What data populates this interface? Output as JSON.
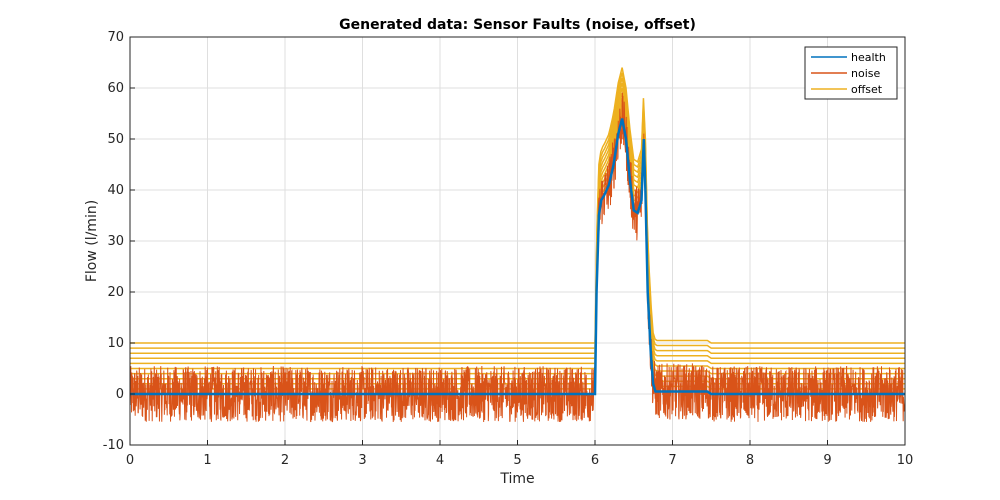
{
  "chart_data": {
    "type": "line",
    "title": "Generated data: Sensor Faults (noise, offset)",
    "xlabel": "Time",
    "ylabel": "Flow (l/min)",
    "xlim": [
      0,
      10
    ],
    "ylim": [
      -10,
      70
    ],
    "xticks": [
      0,
      1,
      2,
      3,
      4,
      5,
      6,
      7,
      8,
      9,
      10
    ],
    "yticks": [
      -10,
      0,
      10,
      20,
      30,
      40,
      50,
      60,
      70
    ],
    "grid": true,
    "legend_position": "top-right",
    "colors": {
      "health": "#0072BD",
      "noise": "#D95319",
      "offset": "#EDB120"
    },
    "series": [
      {
        "name": "health",
        "color": "#0072BD",
        "x": [
          0,
          6.0,
          6.02,
          6.05,
          6.08,
          6.12,
          6.18,
          6.24,
          6.3,
          6.35,
          6.4,
          6.45,
          6.5,
          6.55,
          6.6,
          6.63,
          6.65,
          6.68,
          6.72,
          6.75,
          6.78,
          7.45,
          7.5,
          10
        ],
        "y": [
          0,
          0,
          20,
          35,
          38,
          39,
          41,
          45,
          51,
          54,
          50,
          42,
          36,
          35.5,
          38,
          50,
          40,
          20,
          8,
          2,
          0.5,
          0.5,
          0,
          0
        ]
      },
      {
        "name": "noise",
        "color": "#D95319",
        "x": [
          0,
          6.0,
          6.02,
          6.05,
          6.08,
          6.12,
          6.18,
          6.24,
          6.3,
          6.35,
          6.4,
          6.45,
          6.5,
          6.55,
          6.6,
          6.63,
          6.65,
          6.68,
          6.72,
          6.75,
          6.78,
          7.45,
          7.5,
          10
        ],
        "y": [
          0,
          0,
          20,
          35,
          38,
          39,
          41,
          45,
          51,
          54,
          50,
          42,
          36,
          35.5,
          38,
          50,
          40,
          20,
          8,
          2,
          0.5,
          0.5,
          0,
          0
        ],
        "noise_amplitude": 5.5
      },
      {
        "name": "offset",
        "color": "#EDB120",
        "x": [
          0,
          6.0,
          6.02,
          6.05,
          6.08,
          6.12,
          6.18,
          6.24,
          6.3,
          6.35,
          6.4,
          6.45,
          6.5,
          6.55,
          6.6,
          6.63,
          6.65,
          6.68,
          6.72,
          6.75,
          6.78,
          7.45,
          7.5,
          10
        ],
        "y": [
          0,
          0,
          20,
          35,
          38,
          39,
          41,
          45,
          51,
          54,
          50,
          42,
          36,
          35.5,
          38,
          50,
          40,
          20,
          8,
          2,
          0.5,
          0.5,
          0,
          0
        ],
        "offsets": [
          1,
          2,
          3,
          4,
          5,
          6,
          7,
          8,
          9,
          10
        ]
      }
    ]
  }
}
